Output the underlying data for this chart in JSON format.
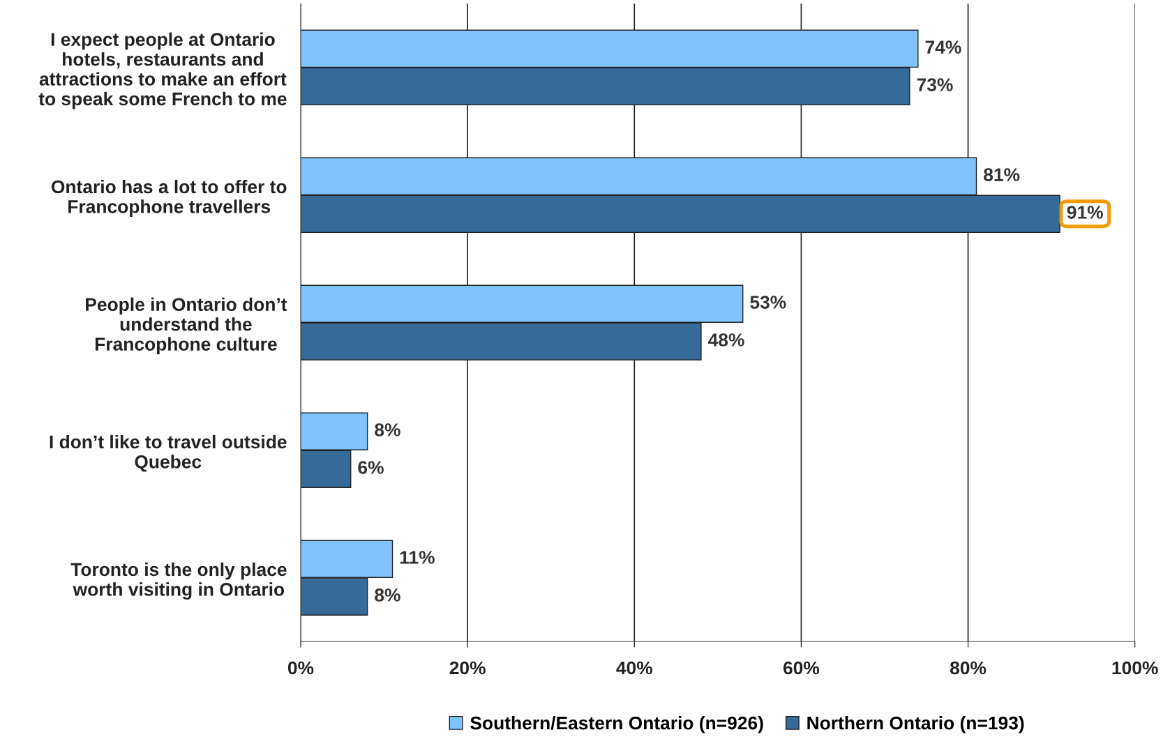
{
  "chart_data": {
    "type": "bar",
    "orientation": "horizontal",
    "categories": [
      "I expect people at Ontario\nhotels, restaurants and\nattractions to make an effort\nto speak some French to me",
      "Ontario has a lot to offer to\nFrancophone travellers",
      "People in Ontario don’t\nunderstand the\nFrancophone culture",
      "I don’t like to travel outside\nQuebec",
      "Toronto is the only place\nworth visiting in Ontario"
    ],
    "series": [
      {
        "name": "Southern/Eastern Ontario (n=926)",
        "color": "#80c4ff",
        "values": [
          74,
          81,
          53,
          8,
          11
        ]
      },
      {
        "name": "Northern Ontario (n=193)",
        "color": "#366a99",
        "values": [
          73,
          91,
          48,
          6,
          8
        ]
      }
    ],
    "xlim": [
      0,
      100
    ],
    "xticks": [
      {
        "value": 0,
        "label": "0%"
      },
      {
        "value": 20,
        "label": "20%"
      },
      {
        "value": 40,
        "label": "40%"
      },
      {
        "value": 60,
        "label": "60%"
      },
      {
        "value": 80,
        "label": "80%"
      },
      {
        "value": 100,
        "label": "100%"
      }
    ],
    "value_labels": [
      [
        "74%",
        "81%",
        "53%",
        "8%",
        "11%"
      ],
      [
        "73%",
        "91%",
        "48%",
        "6%",
        "8%"
      ]
    ],
    "grid": "x",
    "legend": "bottom"
  }
}
